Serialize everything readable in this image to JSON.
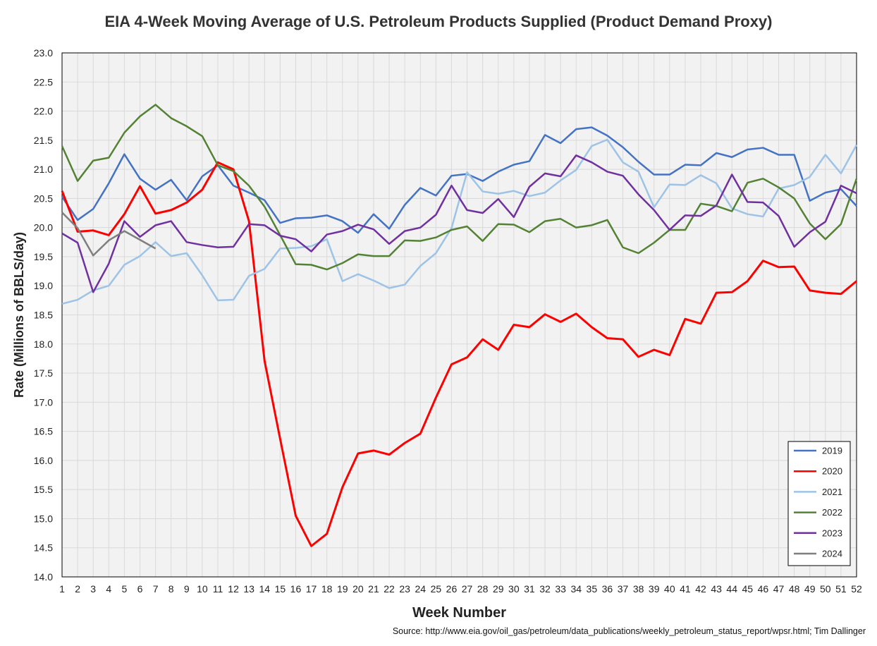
{
  "chart_data": {
    "type": "line",
    "title": "EIA 4-Week Moving Average of U.S. Petroleum Products Supplied (Product Demand Proxy)",
    "xlabel": "Week Number",
    "ylabel": "Rate (Millions of BBLS/day)",
    "xlim": [
      1,
      52
    ],
    "ylim": [
      14.0,
      23.0
    ],
    "ytick_step": 0.5,
    "grid": true,
    "legend_position": "bottom-right",
    "source": "Source: http://www.eia.gov/oil_gas/petroleum/data_publications/weekly_petroleum_status_report/wpsr.html; Tim Dallinger",
    "series": [
      {
        "name": "2019",
        "color": "#4472C4",
        "values": [
          20.53,
          20.13,
          20.32,
          20.76,
          21.26,
          20.84,
          20.65,
          20.82,
          20.47,
          20.88,
          21.07,
          20.72,
          20.6,
          20.47,
          20.08,
          20.16,
          20.17,
          20.21,
          20.11,
          19.91,
          20.23,
          19.98,
          20.39,
          20.68,
          20.55,
          20.89,
          20.92,
          20.8,
          20.96,
          21.08,
          21.14,
          21.59,
          21.45,
          21.69,
          21.72,
          21.58,
          21.38,
          21.13,
          20.91,
          20.91,
          21.08,
          21.07,
          21.28,
          21.21,
          21.34,
          21.37,
          21.25,
          21.25,
          20.46,
          20.6,
          20.66,
          20.37
        ]
      },
      {
        "name": "2020",
        "color": "#FF0000",
        "values": [
          20.63,
          19.93,
          19.95,
          19.87,
          20.23,
          20.71,
          20.24,
          20.3,
          20.43,
          20.65,
          21.12,
          21.0,
          20.11,
          17.71,
          16.37,
          15.05,
          14.53,
          14.74,
          15.54,
          16.12,
          16.17,
          16.1,
          16.3,
          16.46,
          17.08,
          17.65,
          17.77,
          18.08,
          17.9,
          18.33,
          18.29,
          18.51,
          18.38,
          18.52,
          18.29,
          18.1,
          18.08,
          17.78,
          17.9,
          17.81,
          18.43,
          18.35,
          18.88,
          18.89,
          19.08,
          19.43,
          19.32,
          19.33,
          18.92,
          18.88,
          18.86,
          19.08
        ]
      },
      {
        "name": "2021",
        "color": "#9DC3E6",
        "values": [
          18.69,
          18.76,
          18.92,
          19.0,
          19.36,
          19.51,
          19.75,
          19.51,
          19.56,
          19.18,
          18.75,
          18.76,
          19.17,
          19.29,
          19.64,
          19.65,
          19.68,
          19.8,
          19.08,
          19.2,
          19.09,
          18.96,
          19.02,
          19.34,
          19.56,
          19.99,
          20.95,
          20.62,
          20.58,
          20.63,
          20.54,
          20.6,
          20.81,
          20.99,
          21.4,
          21.51,
          21.12,
          20.96,
          20.35,
          20.74,
          20.73,
          20.9,
          20.76,
          20.33,
          20.23,
          20.19,
          20.67,
          20.73,
          20.87,
          21.25,
          20.93,
          21.42
        ]
      },
      {
        "name": "2022",
        "color": "#548235",
        "values": [
          21.4,
          20.8,
          21.15,
          21.2,
          21.63,
          21.91,
          22.11,
          21.88,
          21.74,
          21.57,
          21.07,
          20.97,
          20.72,
          20.36,
          19.87,
          19.37,
          19.36,
          19.28,
          19.39,
          19.54,
          19.51,
          19.51,
          19.78,
          19.77,
          19.83,
          19.96,
          20.02,
          19.77,
          20.06,
          20.05,
          19.92,
          20.11,
          20.15,
          20.0,
          20.04,
          20.13,
          19.66,
          19.56,
          19.74,
          19.96,
          19.96,
          20.41,
          20.37,
          20.28,
          20.77,
          20.84,
          20.69,
          20.5,
          20.07,
          19.8,
          20.06,
          20.84
        ]
      },
      {
        "name": "2023",
        "color": "#7030A0",
        "values": [
          19.9,
          19.74,
          18.89,
          19.38,
          20.11,
          19.84,
          20.04,
          20.11,
          19.75,
          19.7,
          19.66,
          19.67,
          20.06,
          20.04,
          19.86,
          19.8,
          19.59,
          19.88,
          19.94,
          20.05,
          19.97,
          19.72,
          19.94,
          20.0,
          20.22,
          20.72,
          20.3,
          20.25,
          20.49,
          20.18,
          20.7,
          20.93,
          20.88,
          21.24,
          21.12,
          20.96,
          20.89,
          20.57,
          20.3,
          19.96,
          20.21,
          20.2,
          20.38,
          20.91,
          20.44,
          20.43,
          20.2,
          19.67,
          19.92,
          20.1,
          20.72,
          20.59
        ]
      },
      {
        "name": "2024",
        "color": "#7F7F7F",
        "values": [
          20.26,
          19.99,
          19.52,
          19.78,
          19.94,
          19.79,
          19.64
        ]
      }
    ]
  }
}
